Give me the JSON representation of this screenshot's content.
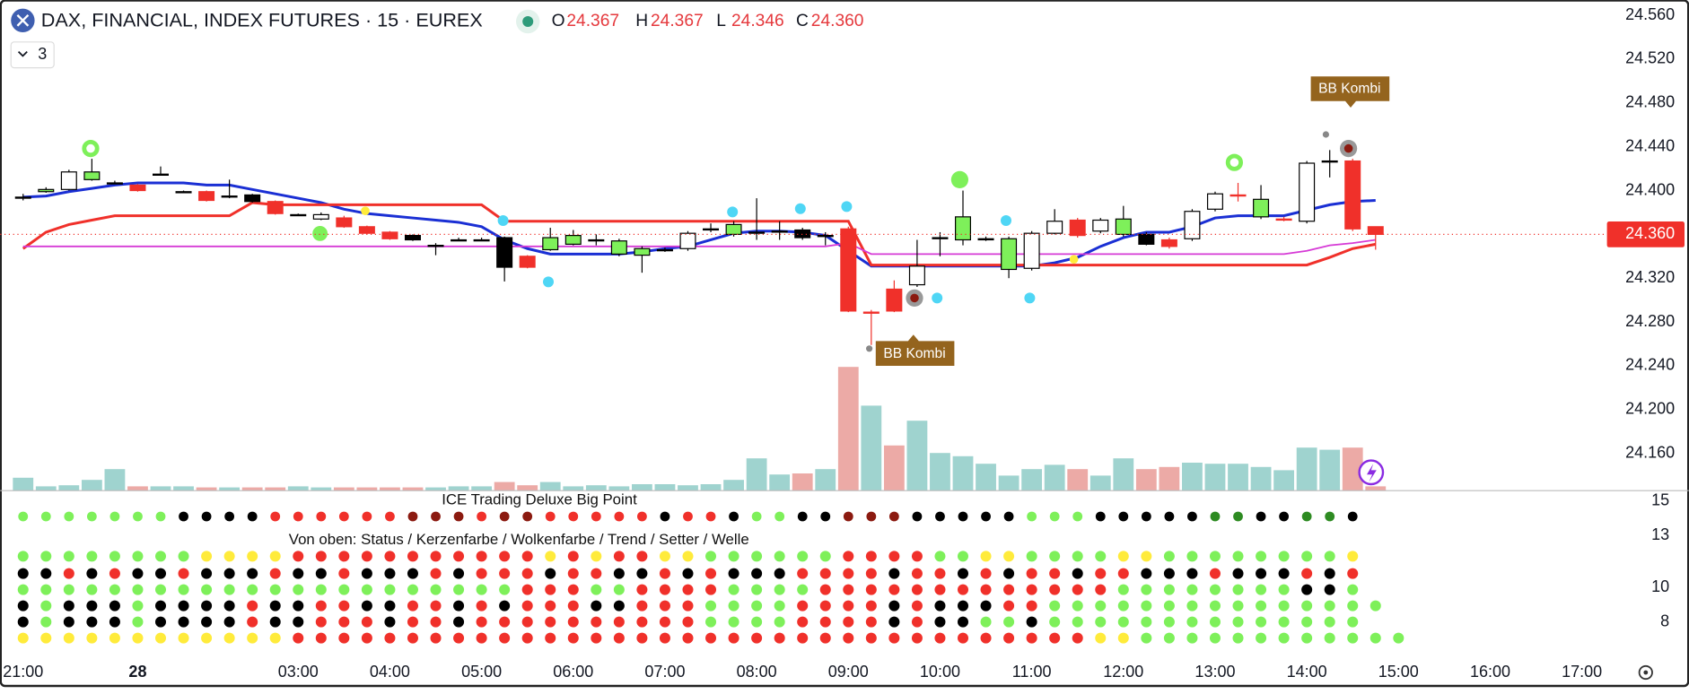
{
  "header": {
    "title": "DAX, FINANCIAL, INDEX FUTURES · 15 · EUREX",
    "indicator_count": 3,
    "ohlc": [
      {
        "label": "O",
        "value": 24367,
        "value_label": "24.367"
      },
      {
        "label": "H",
        "value": 24367,
        "value_label": "24.367"
      },
      {
        "label": "L",
        "value": 24346,
        "value_label": "24.346"
      },
      {
        "label": "C",
        "value": 24360,
        "value_label": "24.360"
      }
    ]
  },
  "chart_data": {
    "type": "candlestick",
    "xlim": [
      -1,
      69
    ],
    "xticks": [
      {
        "value": 0,
        "label": "21:00"
      },
      {
        "value": 5,
        "label": "28"
      },
      {
        "value": 12,
        "label": "03:00"
      },
      {
        "value": 16,
        "label": "04:00"
      },
      {
        "value": 20,
        "label": "05:00"
      },
      {
        "value": 24,
        "label": "06:00"
      },
      {
        "value": 28,
        "label": "07:00"
      },
      {
        "value": 32,
        "label": "08:00"
      },
      {
        "value": 36,
        "label": "09:00"
      },
      {
        "value": 40,
        "label": "10:00"
      },
      {
        "value": 44,
        "label": "11:00"
      },
      {
        "value": 48,
        "label": "12:00"
      },
      {
        "value": 52,
        "label": "13:00"
      },
      {
        "value": 56,
        "label": "14:00"
      },
      {
        "value": 60,
        "label": "15:00"
      },
      {
        "value": 64,
        "label": "16:00"
      },
      {
        "value": 68,
        "label": "17:00"
      }
    ],
    "ylim": [
      24126,
      24574
    ],
    "yticks": [
      {
        "value": 24560,
        "label": "24.560"
      },
      {
        "value": 24520,
        "label": "24.520"
      },
      {
        "value": 24480,
        "label": "24.480"
      },
      {
        "value": 24440,
        "label": "24.440"
      },
      {
        "value": 24400,
        "label": "24.400"
      },
      {
        "value": 24360,
        "label": "24.360"
      },
      {
        "value": 24320,
        "label": "24.320"
      },
      {
        "value": 24280,
        "label": "24.280"
      },
      {
        "value": 24240,
        "label": "24.240"
      },
      {
        "value": 24200,
        "label": "24.200"
      },
      {
        "value": 24160,
        "label": "24.160"
      }
    ],
    "last_price": {
      "value": 24360,
      "label": "24.360",
      "color": "#f0302a"
    },
    "colors": {
      "g": "#7ef05a",
      "k": "#000000",
      "r": "#f0302a",
      "w": "#ffffff",
      "d": "#8b1a10",
      "G": "#2e8b22",
      "y": "#ffeb3b"
    },
    "candle_colors": "kgwgkrkkrkkrkwrrrkkkkkrggkggkwkgkkkkrrrwkgkgwwrwgkrwwrgrwgrr",
    "open": [
      24394,
      24399,
      24401,
      24410,
      24407,
      24405,
      24415,
      24399,
      24399,
      24395,
      24396,
      24390,
      24378,
      24374,
      24375,
      24367,
      24362,
      24359,
      24350,
      24355,
      24355,
      24357,
      24340,
      24346,
      24351,
      24355,
      24342,
      24341,
      24346,
      24347,
      24365,
      24360,
      24362,
      24363,
      24364,
      24359,
      24365,
      24289,
      24310,
      24314,
      24357,
      24355,
      24356,
      24328,
      24329,
      24361,
      24373,
      24363,
      24360,
      24360,
      24355,
      24356,
      24383,
      24396,
      24376,
      24374,
      24372,
      24427,
      24427,
      24367
    ],
    "high": [
      24397,
      24403,
      24419,
      24429,
      24409,
      24406,
      24422,
      24400,
      24400,
      24410,
      24397,
      24391,
      24379,
      24380,
      24377,
      24368,
      24363,
      24360,
      24352,
      24357,
      24357,
      24358,
      24341,
      24366,
      24364,
      24360,
      24356,
      24349,
      24348,
      24363,
      24370,
      24372,
      24393,
      24372,
      24366,
      24362,
      24367,
      24291,
      24318,
      24355,
      24362,
      24400,
      24358,
      24358,
      24363,
      24383,
      24375,
      24375,
      24386,
      24362,
      24357,
      24383,
      24399,
      24407,
      24405,
      24376,
      24427,
      24437,
      24429,
      24367
    ],
    "low": [
      24391,
      24398,
      24400,
      24409,
      24406,
      24399,
      24414,
      24398,
      24390,
      24393,
      24389,
      24378,
      24377,
      24373,
      24366,
      24360,
      24355,
      24354,
      24341,
      24354,
      24354,
      24317,
      24329,
      24345,
      24350,
      24350,
      24340,
      24325,
      24344,
      24345,
      24362,
      24358,
      24355,
      24355,
      24355,
      24350,
      24289,
      24259,
      24289,
      24312,
      24340,
      24350,
      24354,
      24320,
      24327,
      24360,
      24357,
      24361,
      24358,
      24350,
      24347,
      24354,
      24381,
      24390,
      24374,
      24372,
      24370,
      24412,
      24363,
      24346
    ],
    "close": [
      24394,
      24401,
      24417,
      24417,
      24407,
      24400,
      24415,
      24399,
      24391,
      24395,
      24390,
      24379,
      24378,
      24378,
      24367,
      24361,
      24356,
      24355,
      24350,
      24355,
      24355,
      24330,
      24330,
      24357,
      24359,
      24355,
      24354,
      24347,
      24346,
      24361,
      24365,
      24369,
      24362,
      24363,
      24357,
      24359,
      24290,
      24289,
      24290,
      24331,
      24357,
      24376,
      24356,
      24356,
      24361,
      24372,
      24359,
      24373,
      24374,
      24351,
      24349,
      24381,
      24397,
      24396,
      24392,
      24374,
      24425,
      24427,
      24365,
      24360
    ],
    "volume": [
      12,
      4,
      5,
      10,
      20,
      4,
      4,
      4,
      3,
      3,
      3,
      3,
      4,
      3,
      3,
      3,
      3,
      3,
      3,
      4,
      4,
      8,
      5,
      8,
      4,
      5,
      4,
      6,
      6,
      5,
      6,
      10,
      30,
      15,
      16,
      20,
      115,
      79,
      42,
      65,
      35,
      32,
      25,
      14,
      20,
      24,
      20,
      14,
      30,
      20,
      22,
      26,
      25,
      25,
      22,
      19,
      40,
      38,
      40,
      4
    ],
    "volume_colors": {
      "up": "#9fd3cf",
      "down": "#ecaaa6"
    },
    "series": [
      {
        "color": "#1a2fd4",
        "values": [
          24394,
          24395,
          24399,
          24402,
          24405,
          24407,
          24407,
          24407,
          24405,
          24405,
          24401,
          24397,
          24393,
          24389,
          24383,
          24379,
          24377,
          24375,
          24373,
          24371,
          24367,
          24355,
          24347,
          24342,
          24342,
          24342,
          24342,
          24344,
          24347,
          24349,
          24355,
          24361,
          24363,
          24363,
          24362,
          24359,
          24345,
          24331,
          24331,
          24331,
          24331,
          24331,
          24331,
          24331,
          24331,
          24334,
          24339,
          24349,
          24357,
          24362,
          24362,
          24367,
          24375,
          24377,
          24377,
          24377,
          24382,
          24387,
          24390,
          24391
        ]
      },
      {
        "color": "#f0302a",
        "values": [
          24347,
          24362,
          24369,
          24373,
          24377,
          24377,
          24377,
          24377,
          24377,
          24377,
          24389,
          24387,
          24387,
          24387,
          24387,
          24387,
          24387,
          24387,
          24387,
          24387,
          24387,
          24372,
          24372,
          24372,
          24372,
          24372,
          24372,
          24372,
          24372,
          24372,
          24372,
          24372,
          24372,
          24372,
          24372,
          24372,
          24372,
          24332,
          24332,
          24332,
          24332,
          24332,
          24332,
          24332,
          24332,
          24332,
          24332,
          24332,
          24332,
          24332,
          24332,
          24332,
          24332,
          24332,
          24332,
          24332,
          24332,
          24339,
          24347,
          24351
        ]
      },
      {
        "color": "#d63ad6",
        "values": [
          24349,
          24349,
          24349,
          24349,
          24349,
          24349,
          24349,
          24349,
          24349,
          24349,
          24349,
          24349,
          24349,
          24349,
          24349,
          24349,
          24349,
          24349,
          24349,
          24349,
          24349,
          24349,
          24349,
          24349,
          24349,
          24349,
          24349,
          24349,
          24349,
          24349,
          24349,
          24349,
          24349,
          24349,
          24349,
          24349,
          24352,
          24342,
          24342,
          24342,
          24342,
          24342,
          24342,
          24342,
          24342,
          24342,
          24342,
          24342,
          24342,
          24342,
          24342,
          24342,
          24342,
          24342,
          24342,
          24342,
          24345,
          24350,
          24352,
          24355
        ]
      }
    ],
    "annotations": [
      "BB Kombi",
      "BB Kombi"
    ],
    "indicator": {
      "title": "ICE Trading Deluxe Big Point",
      "legend": "Von oben: Status / Kerzenfarbe / Wolkenfarbe / Trend / Setter / Welle",
      "ylim": [
        6,
        15.6
      ],
      "yticks": [
        15,
        13,
        10,
        8
      ],
      "rows": [
        "gggggggkkkkrrrrrrdddrddrrrrrkrrkggkkdddkkkkkgggkkkkkGGkkGGk.",
        "ggggggggyyyyrrrrrrrrrrryryrryyggggggrrrrggyyggggyyggggggggy.",
        "kkrkrkkrkkkrkkrkkkrkrrrkrrkkrkrkkkrrrrkrrkrkrrkrrkkkrkkkrkr.",
        "ggggggggggggggggggggggrrrggrrrrggggrrrrrrrrrrrrrggggggggkkg.",
        "kgkkkgkkkkrkkrrkkrrkrkrrrkkrrrggggrrrrkrkkkrrggggggggggggggg.",
        "kgkkkgkkkkrkkrrrkrrkrrrrrrrrrrggggrrrrkrkkggkgggggggggggggg.",
        "yyyyyyyyyyyyrrrrrrrrrrrrrrrrrrrrrrrrrrrrrrrrrrryygggggggggggg."
      ]
    }
  }
}
